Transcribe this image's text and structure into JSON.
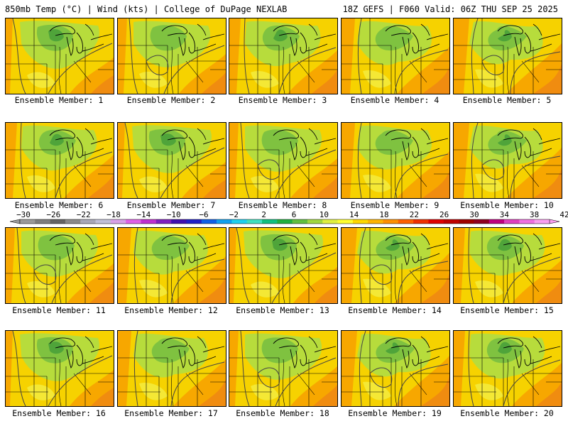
{
  "header": {
    "left_text": "850mb Temp (°C) | Wind (kts) | College of DuPage NEXLAB",
    "right_text": "18Z GEFS | F060 Valid: 06Z THU SEP 25 2025"
  },
  "members": [
    {
      "label": "Ensemble Member: 1",
      "variant": 0
    },
    {
      "label": "Ensemble Member: 2",
      "variant": 1
    },
    {
      "label": "Ensemble Member: 3",
      "variant": 2
    },
    {
      "label": "Ensemble Member: 4",
      "variant": 3
    },
    {
      "label": "Ensemble Member: 5",
      "variant": 4
    },
    {
      "label": "Ensemble Member: 6",
      "variant": 2
    },
    {
      "label": "Ensemble Member: 7",
      "variant": 0
    },
    {
      "label": "Ensemble Member: 8",
      "variant": 1
    },
    {
      "label": "Ensemble Member: 9",
      "variant": 3
    },
    {
      "label": "Ensemble Member: 10",
      "variant": 4
    },
    {
      "label": "Ensemble Member: 11",
      "variant": 1
    },
    {
      "label": "Ensemble Member: 12",
      "variant": 3
    },
    {
      "label": "Ensemble Member: 13",
      "variant": 0
    },
    {
      "label": "Ensemble Member: 14",
      "variant": 4
    },
    {
      "label": "Ensemble Member: 15",
      "variant": 2
    },
    {
      "label": "Ensemble Member: 16",
      "variant": 0
    },
    {
      "label": "Ensemble Member: 17",
      "variant": 3
    },
    {
      "label": "Ensemble Member: 18",
      "variant": 1
    },
    {
      "label": "Ensemble Member: 19",
      "variant": 4
    },
    {
      "label": "Ensemble Member: 20",
      "variant": 2
    }
  ],
  "colorbar": {
    "labels": [
      "−30",
      "−26",
      "−22",
      "−18",
      "−14",
      "−10",
      "−6",
      "−2",
      "2",
      "6",
      "10",
      "14",
      "18",
      "22",
      "26",
      "30",
      "34",
      "38",
      "42"
    ],
    "colors": [
      "#9a9a9a",
      "#7e7e7e",
      "#646464",
      "#8a8a8a",
      "#a8a8b8",
      "#c0c0d8",
      "#d8a0e8",
      "#e060e8",
      "#c030d0",
      "#8020c0",
      "#4010b0",
      "#2020c8",
      "#1060e8",
      "#10a0f0",
      "#20d0f0",
      "#40e0c0",
      "#10c080",
      "#20b040",
      "#60c040",
      "#a0d840",
      "#e0f040",
      "#ffff30",
      "#ffd800",
      "#ffb400",
      "#ff9000",
      "#ff6000",
      "#f03000",
      "#e00000",
      "#c00000",
      "#a00000",
      "#900020",
      "#c00080",
      "#e040c0",
      "#f070e0",
      "#fa9ef0"
    ]
  },
  "palette": {
    "yellow": "#f6d200",
    "light_yellow": "#f4e835",
    "light_green": "#b7dc3c",
    "green": "#7fc240",
    "dark_green": "#4fa43a",
    "orange": "#f7a700",
    "dark_orange": "#f08c10"
  }
}
